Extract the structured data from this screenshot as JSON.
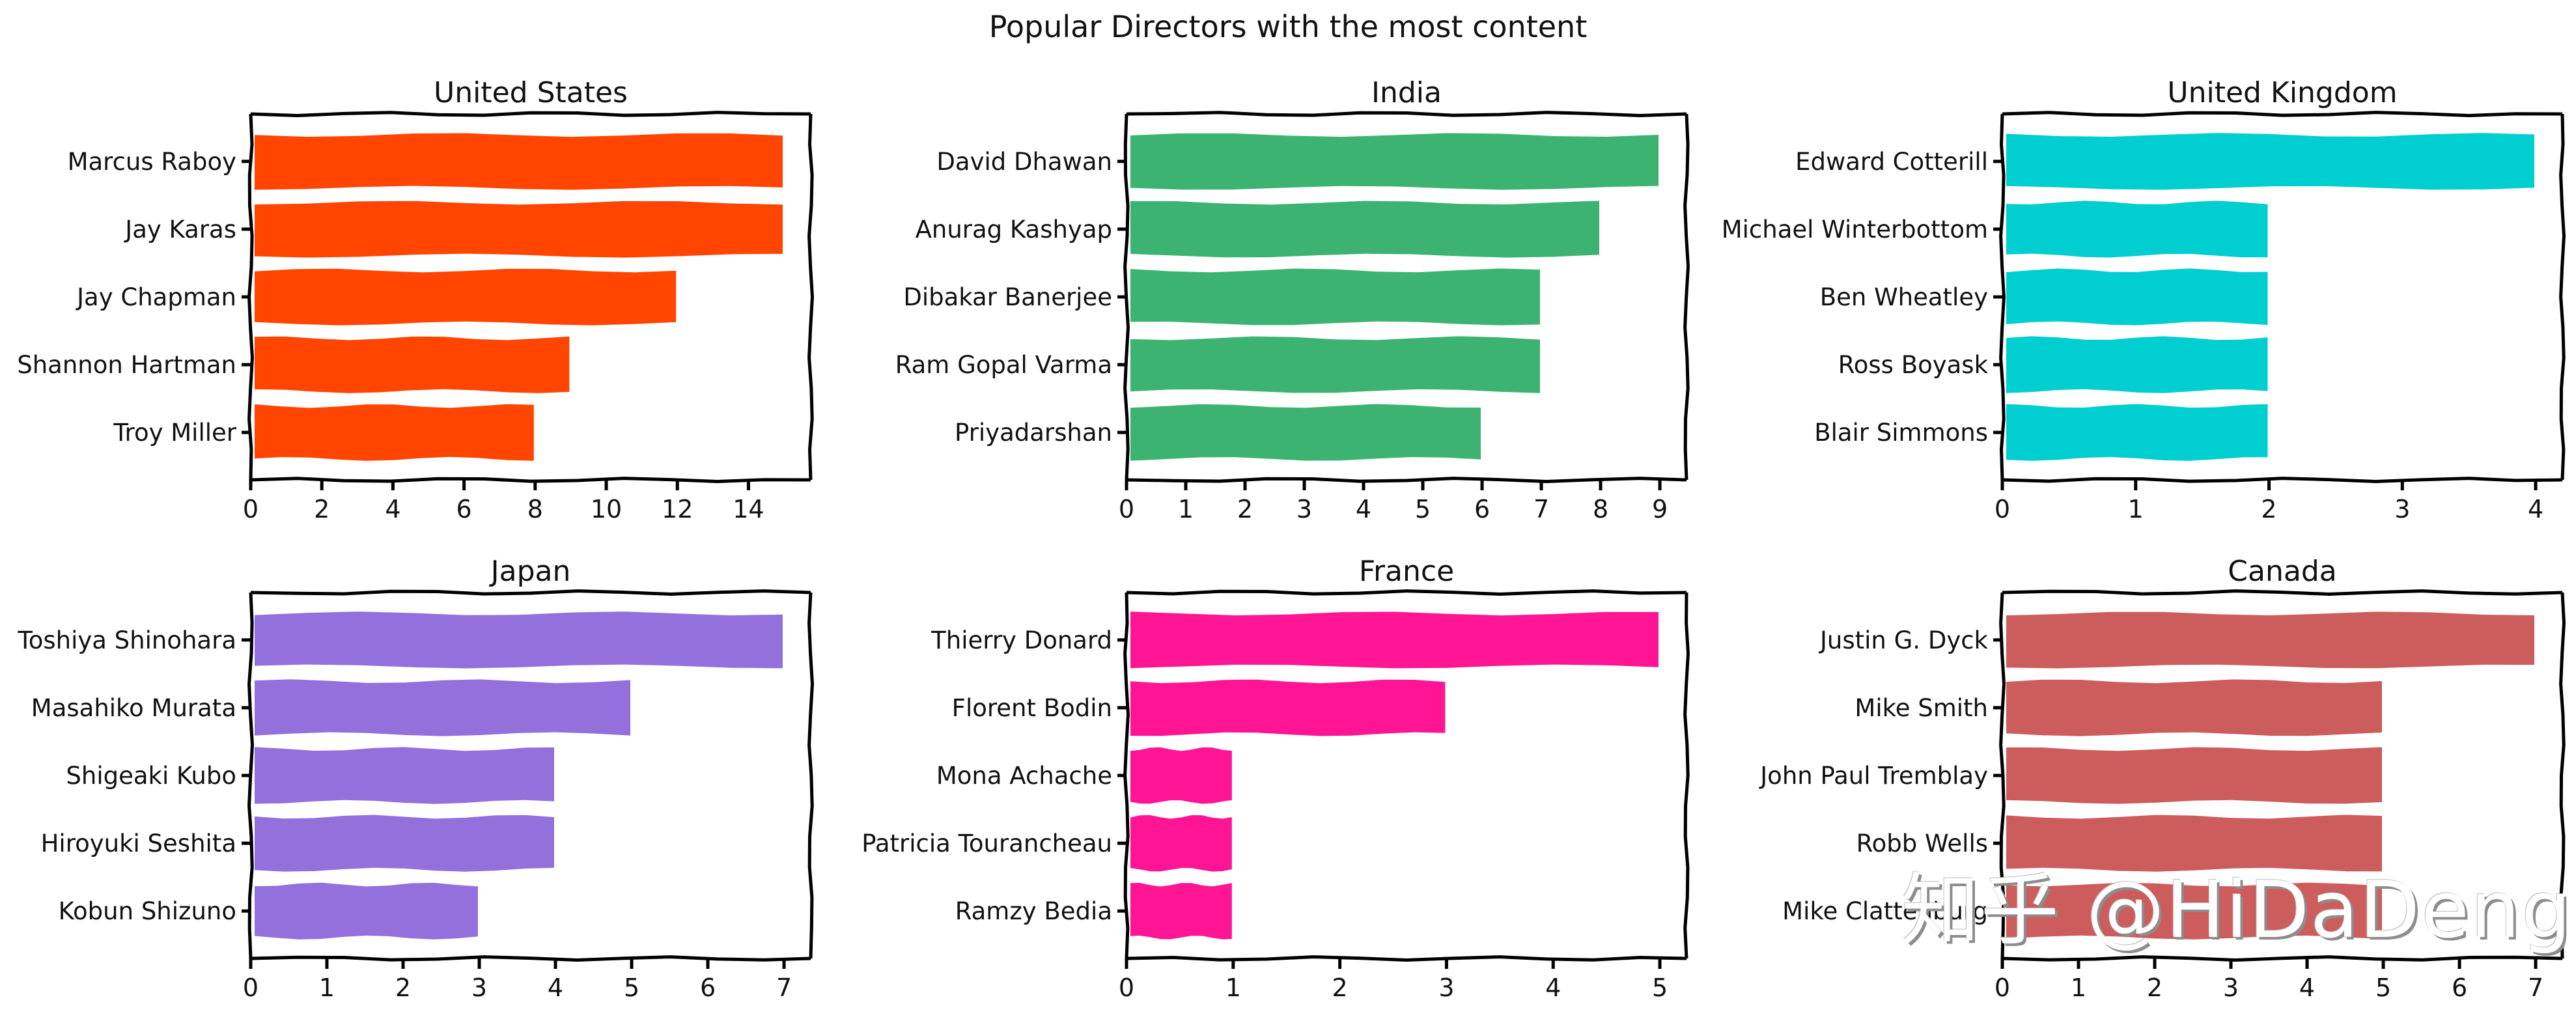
{
  "title": "Popular Directors with the most content",
  "watermark": "知乎 @HiDaDeng",
  "chart_data": [
    {
      "type": "bar",
      "orientation": "horizontal",
      "title": "United States",
      "categories": [
        "Marcus Raboy",
        "Jay Karas",
        "Jay Chapman",
        "Shannon Hartman",
        "Troy Miller"
      ],
      "values": [
        15,
        15,
        12,
        9,
        8
      ],
      "xlim": [
        0,
        15.75
      ],
      "xticks": [
        0,
        2,
        4,
        6,
        8,
        10,
        12,
        14
      ],
      "color": "#ff4500"
    },
    {
      "type": "bar",
      "orientation": "horizontal",
      "title": "India",
      "categories": [
        "David Dhawan",
        "Anurag Kashyap",
        "Dibakar Banerjee",
        "Ram Gopal Varma",
        "Priyadarshan"
      ],
      "values": [
        9,
        8,
        7,
        7,
        6
      ],
      "xlim": [
        0,
        9.45
      ],
      "xticks": [
        0,
        1,
        2,
        3,
        4,
        5,
        6,
        7,
        8,
        9
      ],
      "color": "#3cb371"
    },
    {
      "type": "bar",
      "orientation": "horizontal",
      "title": "United Kingdom",
      "categories": [
        "Edward Cotterill",
        "Michael Winterbottom",
        "Ben Wheatley",
        "Ross Boyask",
        "Blair Simmons"
      ],
      "values": [
        4,
        2,
        2,
        2,
        2
      ],
      "xlim": [
        0,
        4.2
      ],
      "xticks": [
        0,
        1,
        2,
        3,
        4
      ],
      "color": "#00ced1"
    },
    {
      "type": "bar",
      "orientation": "horizontal",
      "title": "Japan",
      "categories": [
        "Toshiya Shinohara",
        "Masahiko Murata",
        "Shigeaki Kubo",
        "Hiroyuki Seshita",
        "Kobun Shizuno"
      ],
      "values": [
        7,
        5,
        4,
        4,
        3
      ],
      "xlim": [
        0,
        7.35
      ],
      "xticks": [
        0,
        1,
        2,
        3,
        4,
        5,
        6,
        7
      ],
      "color": "#9370db"
    },
    {
      "type": "bar",
      "orientation": "horizontal",
      "title": "France",
      "categories": [
        "Thierry Donard",
        "Florent Bodin",
        "Mona Achache",
        "Patricia Tourancheau",
        "Ramzy Bedia"
      ],
      "values": [
        5,
        3,
        1,
        1,
        1
      ],
      "xlim": [
        0,
        5.25
      ],
      "xticks": [
        0,
        1,
        2,
        3,
        4,
        5
      ],
      "color": "#ff1493"
    },
    {
      "type": "bar",
      "orientation": "horizontal",
      "title": "Canada",
      "categories": [
        "Justin G. Dyck",
        "Mike Smith",
        "John Paul Tremblay",
        "Robb Wells",
        "Mike Clattenburg"
      ],
      "values": [
        7,
        5,
        5,
        5,
        5
      ],
      "xlim": [
        0,
        7.35
      ],
      "xticks": [
        0,
        1,
        2,
        3,
        4,
        5,
        6,
        7
      ],
      "color": "#cd5c5c"
    }
  ]
}
